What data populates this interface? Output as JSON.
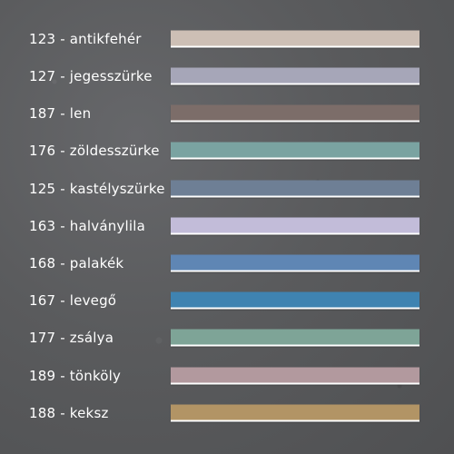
{
  "swatches": [
    {
      "label": "123 - antikfehér",
      "color": "#cdbfb5"
    },
    {
      "label": "127 - jegesszürke",
      "color": "#a6a6b8"
    },
    {
      "label": "187 - len",
      "color": "#7c6d69"
    },
    {
      "label": "176 - zöldesszürke",
      "color": "#7aa3a1"
    },
    {
      "label": "125 - kastélyszürke",
      "color": "#6e7f95"
    },
    {
      "label": "163 - halványlila",
      "color": "#c2bcd9"
    },
    {
      "label": "168 - palakék",
      "color": "#5f86b4"
    },
    {
      "label": "167 - levegő",
      "color": "#3f83b1"
    },
    {
      "label": "177 - zsálya",
      "color": "#7ea497"
    },
    {
      "label": "189 - tönköly",
      "color": "#b2999e"
    },
    {
      "label": "188 - keksz",
      "color": "#b29465"
    }
  ]
}
